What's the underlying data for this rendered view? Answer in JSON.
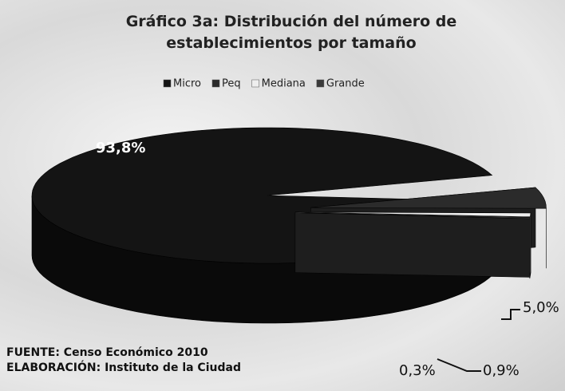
{
  "chart_data": {
    "type": "pie",
    "title": "Gráfico 3a: Distribución del número de establecimientos por tamaño",
    "categories": [
      "Micro",
      "Peq",
      "Mediana",
      "Grande"
    ],
    "values": [
      93.8,
      5.0,
      0.9,
      0.3
    ],
    "value_labels": [
      "93,8%",
      "5,0%",
      "0,9%",
      "0,3%"
    ],
    "colors": [
      "#141414",
      "#2b2b2b",
      "#eeeeee",
      "#3a3a3a"
    ],
    "legend": "top",
    "notes": [
      "FUENTE: Censo Económico 2010",
      "ELABORACIÓN: Instituto de la Ciudad"
    ]
  }
}
